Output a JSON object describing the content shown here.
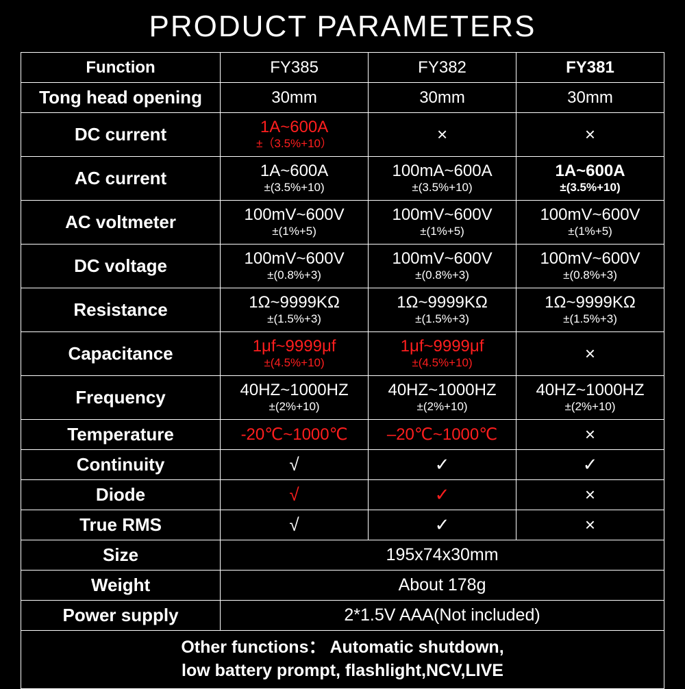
{
  "title": "PRODUCT PARAMETERS",
  "colors": {
    "bg": "#000000",
    "fg": "#ffffff",
    "highlight": "#ff1e1e"
  },
  "header": {
    "func": "Function",
    "c1": "FY385",
    "c2": "FY382",
    "c3": "FY381"
  },
  "rows": {
    "tong": {
      "label": "Tong head opening",
      "c1": "30mm",
      "c2": "30mm",
      "c3": "30mm"
    },
    "dccur": {
      "label": "DC current",
      "c1_main": "1A~600A",
      "c1_sub": "±（3.5%+10）",
      "c2": "×",
      "c3": "×"
    },
    "accur": {
      "label": "AC current",
      "c1_main": "1A~600A",
      "c1_sub": "±(3.5%+10)",
      "c2_main": "100mA~600A",
      "c2_sub": "±(3.5%+10)",
      "c3_main": "1A~600A",
      "c3_sub": "±(3.5%+10)"
    },
    "acvolt": {
      "label": "AC voltmeter",
      "c1_main": "100mV~600V",
      "c1_sub": "±(1%+5)",
      "c2_main": "100mV~600V",
      "c2_sub": "±(1%+5)",
      "c3_main": "100mV~600V",
      "c3_sub": "±(1%+5)"
    },
    "dcvolt": {
      "label": "DC voltage",
      "c1_main": "100mV~600V",
      "c1_sub": "±(0.8%+3)",
      "c2_main": "100mV~600V",
      "c2_sub": "±(0.8%+3)",
      "c3_main": "100mV~600V",
      "c3_sub": "±(0.8%+3)"
    },
    "res": {
      "label": "Resistance",
      "c1_main": "1Ω~9999KΩ",
      "c1_sub": "±(1.5%+3)",
      "c2_main": "1Ω~9999KΩ",
      "c2_sub": "±(1.5%+3)",
      "c3_main": "1Ω~9999KΩ",
      "c3_sub": "±(1.5%+3)"
    },
    "cap": {
      "label": "Capacitance",
      "c1_main": "1μf~9999μf",
      "c1_sub": "±(4.5%+10)",
      "c2_main": "1μf~9999μf",
      "c2_sub": "±(4.5%+10)",
      "c3": "×"
    },
    "freq": {
      "label": "Frequency",
      "c1_main": "40HZ~1000HZ",
      "c1_sub": "±(2%+10)",
      "c2_main": "40HZ~1000HZ",
      "c2_sub": "±(2%+10)",
      "c3_main": "40HZ~1000HZ",
      "c3_sub": "±(2%+10)"
    },
    "temp": {
      "label": "Temperature",
      "c1": "-20℃~1000℃",
      "c2": "–20℃~1000℃",
      "c3": "×"
    },
    "cont": {
      "label": "Continuity",
      "c1": "√",
      "c2": "✓",
      "c3": "✓"
    },
    "diode": {
      "label": "Diode",
      "c1": "√",
      "c2": "✓",
      "c3": "×"
    },
    "rms": {
      "label": "True RMS",
      "c1": "√",
      "c2": "✓",
      "c3": "×"
    },
    "size": {
      "label": "Size",
      "merged": "195x74x30mm"
    },
    "weight": {
      "label": "Weight",
      "merged": "About 178g"
    },
    "power": {
      "label": "Power supply",
      "merged": "2*1.5V AAA(Not included)"
    }
  },
  "footer_line1": "Other functions： Automatic shutdown,",
  "footer_line2": "low battery prompt, flashlight,NCV,LIVE"
}
